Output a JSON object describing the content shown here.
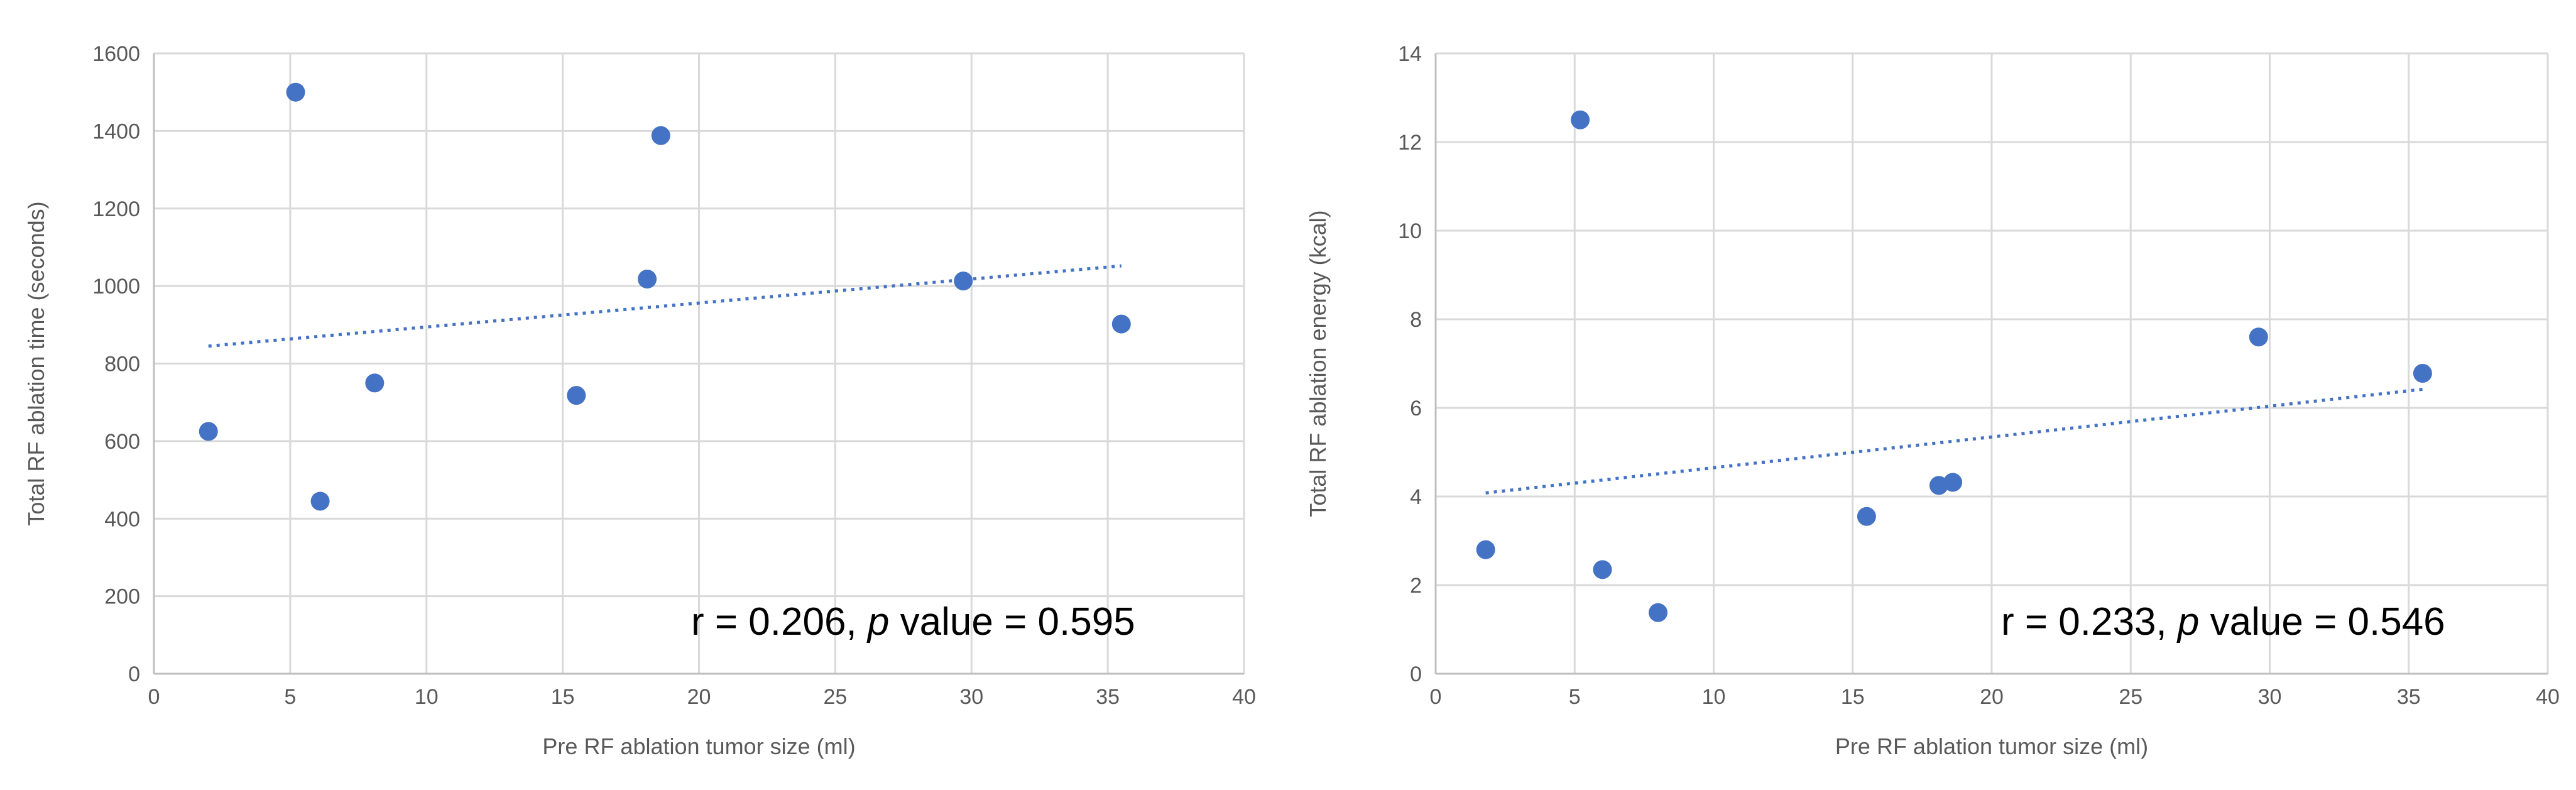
{
  "chart_data": [
    {
      "type": "scatter",
      "xlabel": "Pre RF ablation tumor size (ml)",
      "ylabel": "Total RF ablation time (seconds)",
      "xlim": [
        0,
        40
      ],
      "ylim": [
        0,
        1600
      ],
      "xticks": [
        0,
        5,
        10,
        15,
        20,
        25,
        30,
        35,
        40
      ],
      "yticks": [
        0,
        200,
        400,
        600,
        800,
        1000,
        1200,
        1400,
        1600
      ],
      "grid": true,
      "marker_color": "#4472c4",
      "points": [
        {
          "x": 2.0,
          "y": 625
        },
        {
          "x": 5.2,
          "y": 1500
        },
        {
          "x": 6.1,
          "y": 445
        },
        {
          "x": 8.1,
          "y": 750
        },
        {
          "x": 15.5,
          "y": 718
        },
        {
          "x": 18.1,
          "y": 1018
        },
        {
          "x": 18.6,
          "y": 1388
        },
        {
          "x": 29.7,
          "y": 1013
        },
        {
          "x": 35.5,
          "y": 902
        }
      ],
      "trendline": {
        "type": "linear",
        "x": [
          2.0,
          35.5
        ],
        "y": [
          845,
          1052
        ]
      },
      "annotation": {
        "prefix": "r = 0.206, ",
        "italic": "p",
        "suffix": " value = 0.595"
      }
    },
    {
      "type": "scatter",
      "xlabel": "Pre RF ablation tumor size (ml)",
      "ylabel": "Total RF ablation energy (kcal)",
      "xlim": [
        0,
        40
      ],
      "ylim": [
        0,
        14
      ],
      "xticks": [
        0,
        5,
        10,
        15,
        20,
        25,
        30,
        35,
        40
      ],
      "yticks": [
        0,
        2,
        4,
        6,
        8,
        10,
        12,
        14
      ],
      "grid": true,
      "marker_color": "#4472c4",
      "points": [
        {
          "x": 1.8,
          "y": 2.8
        },
        {
          "x": 5.2,
          "y": 12.5
        },
        {
          "x": 6.0,
          "y": 2.35
        },
        {
          "x": 8.0,
          "y": 1.38
        },
        {
          "x": 15.5,
          "y": 3.55
        },
        {
          "x": 18.1,
          "y": 4.25
        },
        {
          "x": 18.6,
          "y": 4.32
        },
        {
          "x": 29.6,
          "y": 7.6
        },
        {
          "x": 35.5,
          "y": 6.78
        }
      ],
      "trendline": {
        "type": "linear",
        "x": [
          1.8,
          35.5
        ],
        "y": [
          4.08,
          6.42
        ]
      },
      "annotation": {
        "prefix": "r = 0.233, ",
        "italic": "p",
        "suffix": " value = 0.546"
      }
    }
  ]
}
